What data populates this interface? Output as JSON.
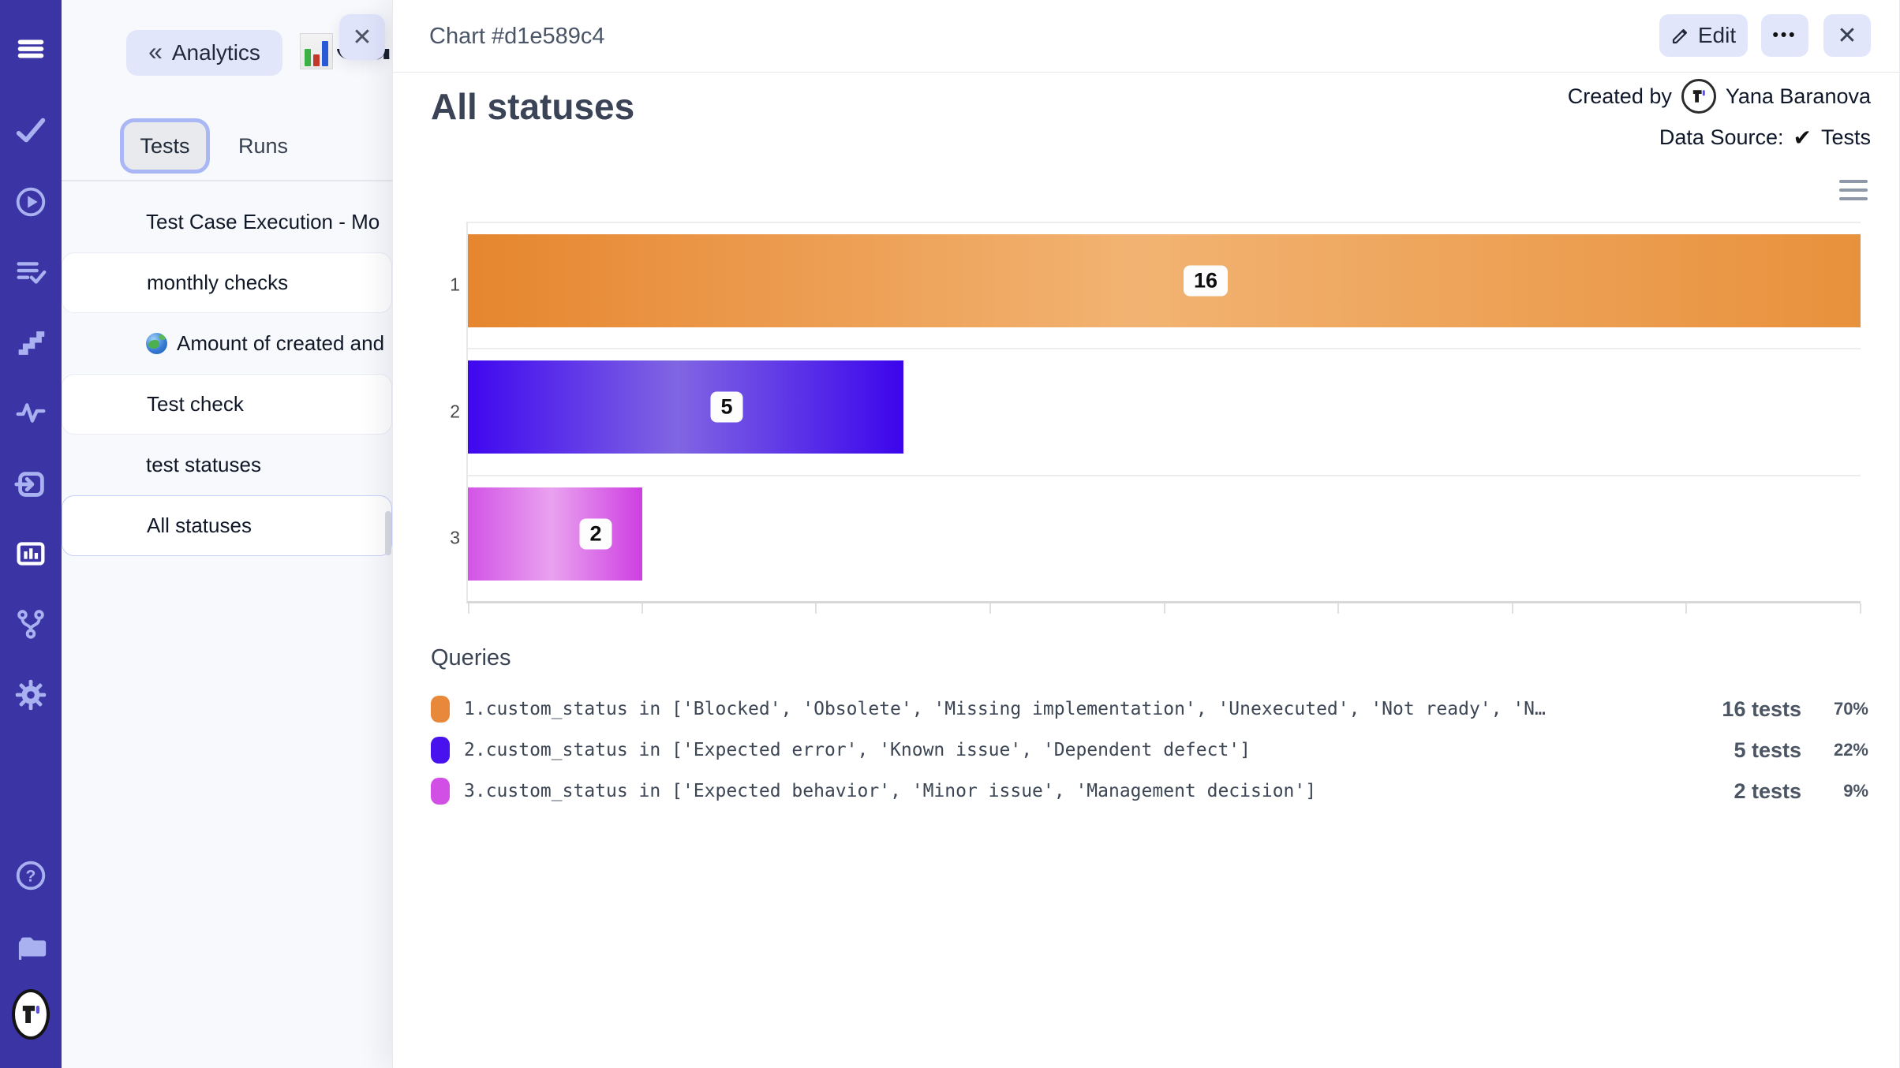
{
  "sidebar": {
    "bg": "#3b34a5",
    "icon_color": "#a9b1f0",
    "active_icon_color": "#ffffff",
    "icons": [
      {
        "name": "menu"
      },
      {
        "name": "check"
      },
      {
        "name": "play-circle"
      },
      {
        "name": "list-check"
      },
      {
        "name": "stairs"
      },
      {
        "name": "activity"
      },
      {
        "name": "import"
      },
      {
        "name": "bar-chart",
        "active": true
      },
      {
        "name": "git-merge"
      },
      {
        "name": "gear"
      }
    ],
    "bottom_icons": [
      {
        "name": "help-circle"
      },
      {
        "name": "folder"
      },
      {
        "name": "logo-avatar"
      }
    ]
  },
  "list_panel": {
    "back_button": "Analytics",
    "page_title_partial": "Cu",
    "close_button": "✕",
    "tabs": [
      {
        "label": "Tests",
        "active": true
      },
      {
        "label": "Runs",
        "active": false
      }
    ],
    "items": [
      {
        "label": "Test Case Execution - Mo"
      },
      {
        "label": "monthly checks"
      },
      {
        "label": "Amount of created and",
        "emoji": "globe"
      },
      {
        "label": "Test check"
      },
      {
        "label": "test statuses"
      },
      {
        "label": "All statuses",
        "selected": true
      }
    ]
  },
  "detail_panel": {
    "header_title": "Chart #d1e589c4",
    "edit_button": "Edit",
    "more_button": "•••",
    "close_button": "✕",
    "chart_title": "All statuses",
    "created_by_label": "Created by",
    "created_by_name": "Yana Baranova",
    "data_source_label": "Data Source:",
    "data_source_check": "✔",
    "data_source_value": "Tests",
    "queries_title": "Queries"
  },
  "chart_data": {
    "type": "bar",
    "orientation": "horizontal",
    "title": "All statuses",
    "categories": [
      "1",
      "2",
      "3"
    ],
    "values": [
      16,
      5,
      2
    ],
    "value_labels": [
      "16",
      "5",
      "2"
    ],
    "xlim": [
      0,
      16
    ],
    "tick_step": 2,
    "grid": true,
    "legend_position": "none",
    "bar_gradients": [
      [
        "#e6862f",
        "#f2b372",
        "#e8913c"
      ],
      [
        "#3f07ef",
        "#8066e2",
        "#3c05ec"
      ],
      [
        "#d254e6",
        "#e9a2ef",
        "#ce3fe2"
      ]
    ]
  },
  "queries": [
    {
      "color": "#e8883b",
      "text": "1.custom_status in ['Blocked', 'Obsolete', 'Missing implementation', 'Unexecuted', 'Not ready', 'N…",
      "tests": "16 tests",
      "percent": "70%"
    },
    {
      "color": "#4812ee",
      "text": "2.custom_status in ['Expected error', 'Known issue', 'Dependent defect']",
      "tests": "5 tests",
      "percent": "22%"
    },
    {
      "color": "#d14fe4",
      "text": "3.custom_status in ['Expected behavior', 'Minor issue', 'Management decision']",
      "tests": "2 tests",
      "percent": "9%"
    }
  ]
}
